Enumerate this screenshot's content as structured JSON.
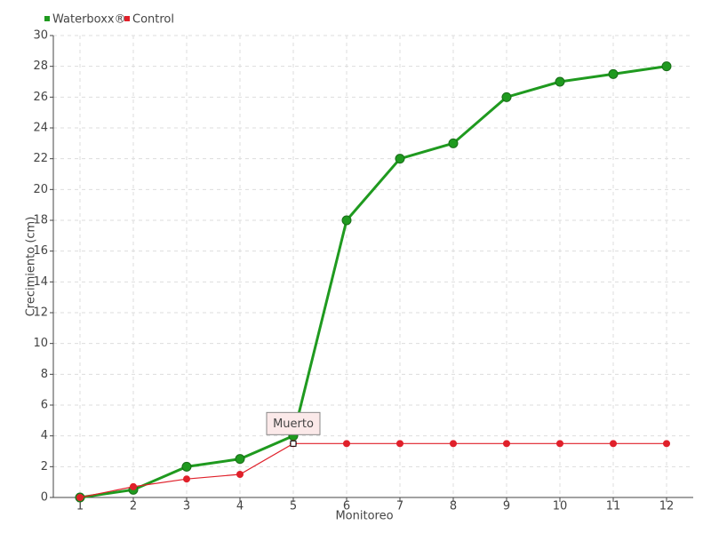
{
  "chart_data": {
    "type": "line",
    "xlabel": "Monitoreo",
    "ylabel": "Crecimiento (cm)",
    "x": [
      1,
      2,
      3,
      4,
      5,
      6,
      7,
      8,
      9,
      10,
      11,
      12
    ],
    "series": [
      {
        "name": "Waterboxx®",
        "color": "#1f9a1f",
        "values": [
          0,
          0.5,
          2,
          2.5,
          4,
          18,
          22,
          23,
          26,
          27,
          27.5,
          28
        ]
      },
      {
        "name": "Control",
        "color": "#e0202a",
        "values": [
          0,
          0.7,
          1.2,
          1.5,
          3.5,
          3.5,
          3.5,
          3.5,
          3.5,
          3.5,
          3.5,
          3.5
        ]
      }
    ],
    "annotation": "Muerto",
    "xlim": [
      0.5,
      12.5
    ],
    "xticks": [
      1,
      2,
      3,
      4,
      5,
      6,
      7,
      8,
      9,
      10,
      11,
      12
    ],
    "ylim": [
      0,
      30
    ],
    "yticks": [
      0,
      2,
      4,
      6,
      8,
      10,
      12,
      14,
      16,
      18,
      20,
      22,
      24,
      26,
      28,
      30
    ],
    "grid": true
  }
}
